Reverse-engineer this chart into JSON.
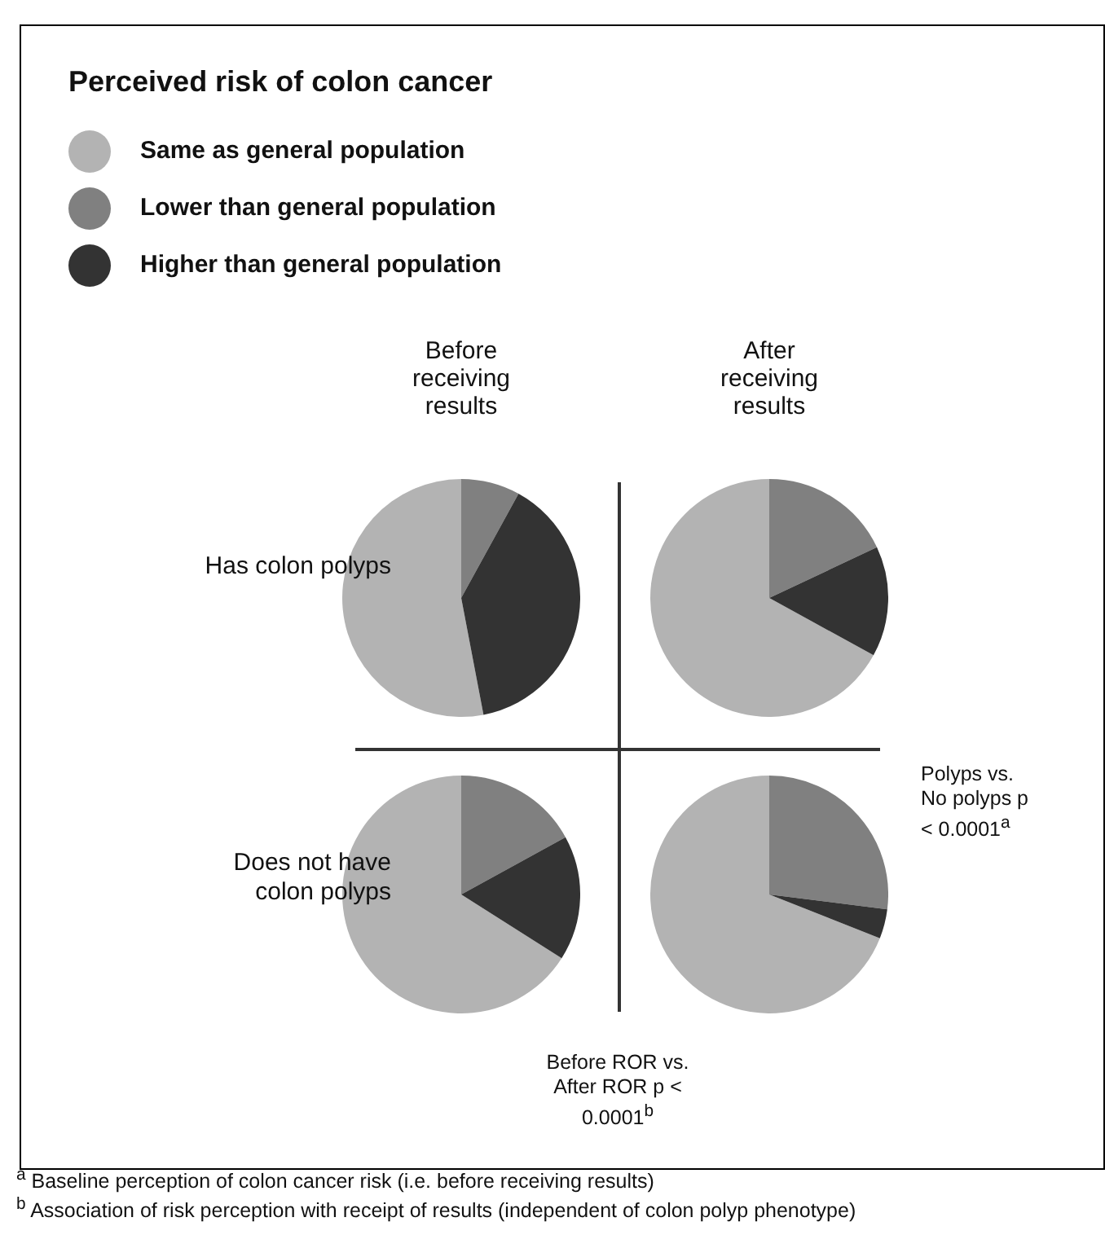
{
  "chart_data": [
    {
      "type": "pie",
      "title": "Before receiving results",
      "ylabel": "Has colon polyps",
      "legend_title": "Perceived risk of colon cancer",
      "legend": "top left",
      "categories": [
        "Same as general population",
        "Lower than general population",
        "Higher than general population"
      ],
      "values": [
        53,
        8,
        39
      ],
      "colors": [
        "#b3b3b3",
        "#808080",
        "#333333"
      ]
    },
    {
      "type": "pie",
      "title": "After receiving results",
      "categories": [
        null,
        null,
        null
      ],
      "values": [
        67,
        18,
        15
      ],
      "colors": [
        "#b3b3b3",
        "#808080",
        "#333333"
      ],
      "annotations": [
        "Polyps vs. No polyps p < 0.0001$^{a}$"
      ]
    },
    {
      "type": "pie",
      "ylabel": "Does not have colon polyps",
      "categories": [
        null,
        null,
        null
      ],
      "values": [
        66,
        17,
        17
      ],
      "colors": [
        "#b3b3b3",
        "#808080",
        "#333333"
      ]
    },
    {
      "type": "pie",
      "categories": [
        null,
        null,
        null
      ],
      "values": [
        69,
        27,
        4
      ],
      "colors": [
        "#b3b3b3",
        "#808080",
        "#333333"
      ],
      "annotations": [
        "Before ROR vs. After ROR p < 0.0001$^{b}$",
        "$^{a}$ Baseline perception of colon cancer risk (i.e. before receiving results)",
        "$^{b}$ Association of risk perception with receipt of results (independent of colon polyp phenotype)"
      ]
    }
  ]
}
